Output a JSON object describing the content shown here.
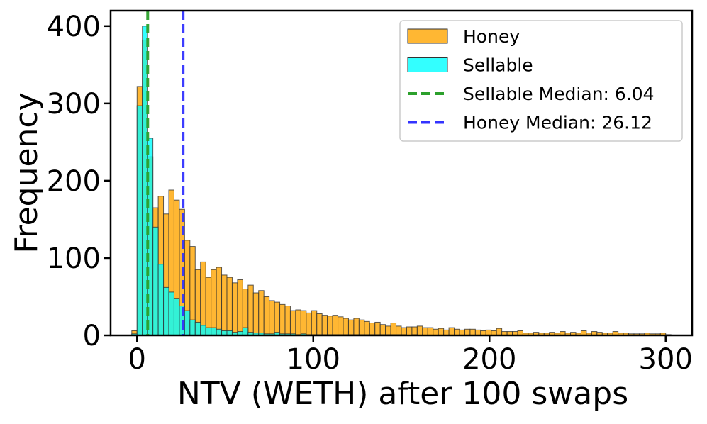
{
  "chart_data": {
    "type": "histogram",
    "xlabel": "NTV (WETH) after 100 swaps",
    "ylabel": "Frequency",
    "xlim": [
      -15,
      315
    ],
    "ylim": [
      0,
      420
    ],
    "x_ticks": [
      0,
      100,
      200,
      300
    ],
    "y_ticks": [
      0,
      100,
      200,
      300,
      400
    ],
    "bin_width": 3,
    "bin_start": -3,
    "grid": false,
    "legend_position": "top-right",
    "series": [
      {
        "name": "Honey",
        "color": "#FFA500",
        "edge_color": "#333333",
        "values": [
          6,
          322,
          382,
          231,
          165,
          180,
          157,
          188,
          175,
          163,
          123,
          115,
          85,
          95,
          75,
          85,
          88,
          78,
          75,
          68,
          72,
          60,
          65,
          55,
          58,
          50,
          45,
          43,
          40,
          38,
          32,
          33,
          32,
          29,
          32,
          28,
          26,
          25,
          26,
          24,
          22,
          20,
          22,
          20,
          18,
          16,
          17,
          14,
          12,
          16,
          12,
          10,
          11,
          11,
          12,
          10,
          10,
          8,
          9,
          7,
          10,
          8,
          7,
          8,
          8,
          7,
          6,
          7,
          6,
          9,
          5,
          5,
          5,
          6,
          3,
          3,
          4,
          3,
          3,
          4,
          3,
          5,
          3,
          4,
          3,
          6,
          3,
          5,
          4,
          3,
          3,
          5,
          3,
          3,
          2,
          2,
          2,
          3,
          2,
          2,
          3,
          1
        ]
      },
      {
        "name": "Sellable",
        "color": "#00FFFF",
        "edge_color": "#333333",
        "values": [
          2,
          297,
          400,
          255,
          140,
          92,
          62,
          56,
          48,
          38,
          32,
          20,
          17,
          13,
          10,
          10,
          8,
          6,
          6,
          4,
          5,
          10,
          4,
          3,
          3,
          2,
          2,
          4,
          2,
          2,
          2,
          1,
          2,
          1,
          1,
          1,
          1,
          1,
          1,
          1,
          1,
          1,
          1,
          1,
          1,
          1,
          1,
          1,
          1,
          1,
          1,
          1,
          0,
          1,
          0,
          0,
          0,
          0,
          0,
          0,
          0,
          0,
          0,
          0,
          0,
          0,
          0,
          0,
          0,
          0,
          0,
          0,
          0,
          0,
          0,
          0,
          0,
          0,
          0,
          0,
          0,
          0,
          0,
          0,
          0,
          0,
          0,
          0,
          0,
          0,
          0,
          0,
          0,
          0,
          0,
          0,
          0,
          0,
          0,
          0,
          0,
          0
        ]
      }
    ],
    "medians": [
      {
        "name": "Sellable Median: 6.04",
        "value": 6.04,
        "color": "#2CA02C",
        "style": "dashed"
      },
      {
        "name": "Honey Median: 26.12",
        "value": 26.12,
        "color": "#3333FF",
        "style": "dashed"
      }
    ]
  }
}
